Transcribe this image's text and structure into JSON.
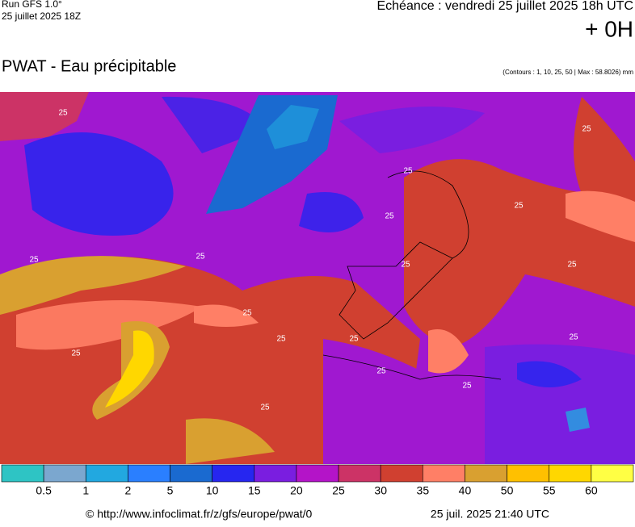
{
  "header": {
    "run": "Run GFS 1.0°",
    "run_date": "25 juillet 2025 18Z",
    "echeance": "Echéance : vendredi 25 juillet 2025 18h UTC",
    "offset": "+ 0H",
    "title": "PWAT - Eau précipitable",
    "contours": "(Contours : 1, 10, 25, 50 | Max : 58.8026) mm"
  },
  "map": {
    "contour_labels": [
      "25",
      "25",
      "25",
      "25",
      "25",
      "25",
      "25",
      "25",
      "25",
      "25",
      "25",
      "25",
      "25",
      "25",
      "25",
      "25",
      "25"
    ]
  },
  "legend": {
    "colors": [
      "#2ec4c4",
      "#7ba7cf",
      "#22a8e0",
      "#2a7fff",
      "#1a6ad0",
      "#2626f0",
      "#7a1ee0",
      "#b414c8",
      "#cc3366",
      "#d04030",
      "#ff7f66",
      "#d9a030",
      "#ffc000",
      "#ffd700",
      "#ffff44"
    ],
    "labels": [
      "0.5",
      "1",
      "2",
      "5",
      "10",
      "15",
      "20",
      "25",
      "30",
      "35",
      "40",
      "50",
      "55",
      "60"
    ]
  },
  "footer": {
    "url": "© http://www.infoclimat.fr/z/gfs/europe/pwat/0",
    "date": "25 juil. 2025 21:40 UTC"
  }
}
